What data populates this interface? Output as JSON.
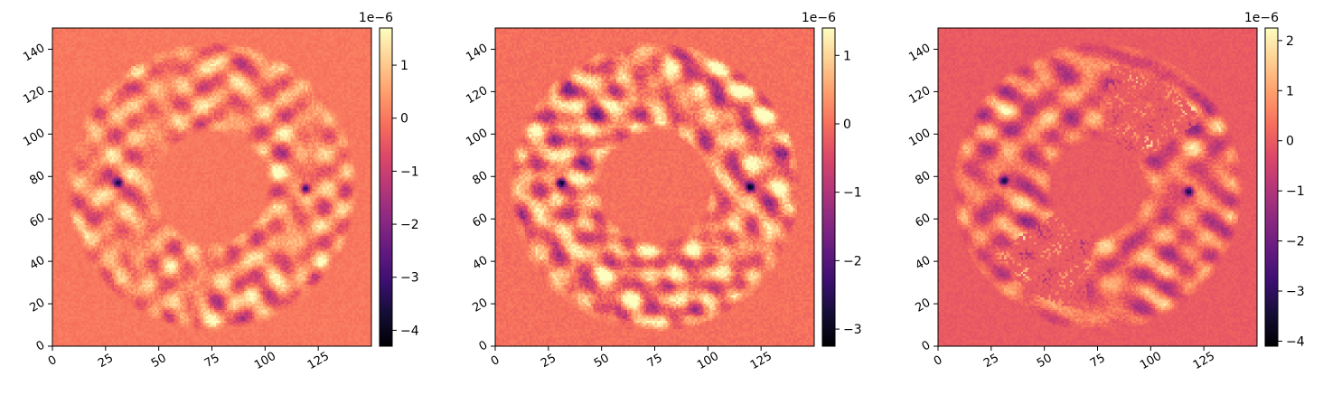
{
  "chart_data": [
    {
      "type": "heatmap",
      "colormap": "magma",
      "background_value": 0,
      "x_ticks": [
        0,
        25,
        50,
        75,
        100,
        125
      ],
      "y_ticks": [
        0,
        20,
        40,
        60,
        80,
        100,
        120,
        140
      ],
      "xlim": [
        0,
        150
      ],
      "ylim": [
        0,
        150
      ],
      "colorbar": {
        "exponent_label": "1e−6",
        "vmin": -4.3,
        "vmax": 1.7,
        "ticks": [
          1,
          0,
          -1,
          -2,
          -3,
          -4
        ],
        "tick_labels": [
          "1",
          "0",
          "−1",
          "−2",
          "−3",
          "−4"
        ]
      },
      "pattern": {
        "mode": "ring",
        "inner_radius": 26,
        "outer_radius": 68,
        "spots": [
          [
            31,
            77
          ],
          [
            119,
            74
          ]
        ],
        "seed": 11
      }
    },
    {
      "type": "heatmap",
      "colormap": "magma",
      "background_value": 0,
      "x_ticks": [
        0,
        25,
        50,
        75,
        100,
        125
      ],
      "y_ticks": [
        0,
        20,
        40,
        60,
        80,
        100,
        120,
        140
      ],
      "xlim": [
        0,
        150
      ],
      "ylim": [
        0,
        150
      ],
      "colorbar": {
        "exponent_label": "1e−6",
        "vmin": -3.25,
        "vmax": 1.4,
        "ticks": [
          1,
          0,
          -1,
          -2,
          -3
        ],
        "tick_labels": [
          "1",
          "0",
          "−1",
          "−2",
          "−3"
        ]
      },
      "pattern": {
        "mode": "ring",
        "inner_radius": 26,
        "outer_radius": 68,
        "spots": [
          [
            31,
            77
          ],
          [
            120,
            75
          ]
        ],
        "seed": 23
      }
    },
    {
      "type": "heatmap",
      "colormap": "magma",
      "background_value": 0,
      "x_ticks": [
        0,
        25,
        50,
        75,
        100,
        125
      ],
      "y_ticks": [
        0,
        20,
        40,
        60,
        80,
        100,
        120,
        140
      ],
      "xlim": [
        0,
        150
      ],
      "ylim": [
        0,
        150
      ],
      "colorbar": {
        "exponent_label": "1e−6",
        "vmin": -4.1,
        "vmax": 2.25,
        "ticks": [
          2,
          1,
          0,
          -1,
          -2,
          -3,
          -4
        ],
        "tick_labels": [
          "2",
          "1",
          "0",
          "−1",
          "−2",
          "−3",
          "−4"
        ]
      },
      "pattern": {
        "mode": "split",
        "inner_radius": 22,
        "outer_radius": 68,
        "spots": [
          [
            31,
            78
          ],
          [
            118,
            73
          ]
        ],
        "seed": 37
      }
    }
  ]
}
